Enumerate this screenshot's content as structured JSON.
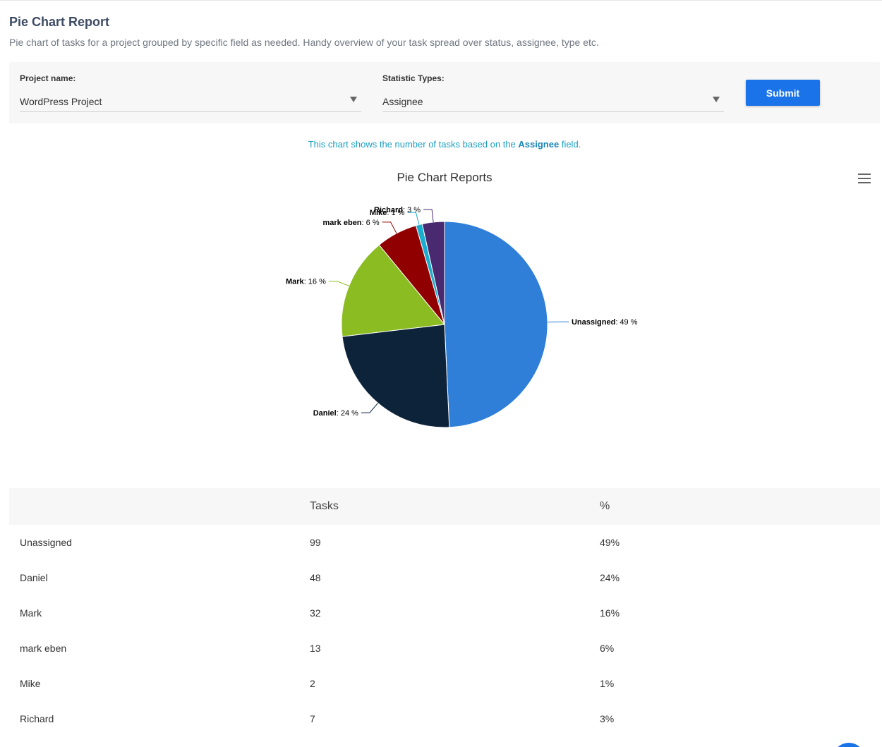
{
  "page": {
    "title": "Pie Chart Report",
    "description": "Pie chart of tasks for a project grouped by specific field as needed. Handy overview of your task spread over status, assignee, type etc."
  },
  "filters": {
    "project_label": "Project name:",
    "project_value": "WordPress Project",
    "stat_label": "Statistic Types:",
    "stat_value": "Assignee",
    "submit_label": "Submit"
  },
  "chart_note": {
    "prefix": "This chart shows the number of tasks based on the ",
    "field": "Assignee",
    "suffix": " field."
  },
  "chart_data": {
    "type": "pie",
    "title": "Pie Chart Reports",
    "labels": [
      "Unassigned",
      "Daniel",
      "Mark",
      "mark eben",
      "Mike",
      "Richard"
    ],
    "values": [
      99,
      48,
      32,
      13,
      2,
      7
    ],
    "percent_labels": [
      "49 %",
      "24 %",
      "16 %",
      "6 %",
      "1 %",
      "3 %"
    ],
    "colors": [
      "#2f7ed8",
      "#0d233a",
      "#8bbc21",
      "#910000",
      "#1aadce",
      "#492970"
    ]
  },
  "table": {
    "headers": [
      "",
      "Tasks",
      "%"
    ],
    "rows": [
      [
        "Unassigned",
        "99",
        "49%"
      ],
      [
        "Daniel",
        "48",
        "24%"
      ],
      [
        "Mark",
        "32",
        "16%"
      ],
      [
        "mark eben",
        "13",
        "6%"
      ],
      [
        "Mike",
        "2",
        "1%"
      ],
      [
        "Richard",
        "7",
        "3%"
      ]
    ]
  }
}
